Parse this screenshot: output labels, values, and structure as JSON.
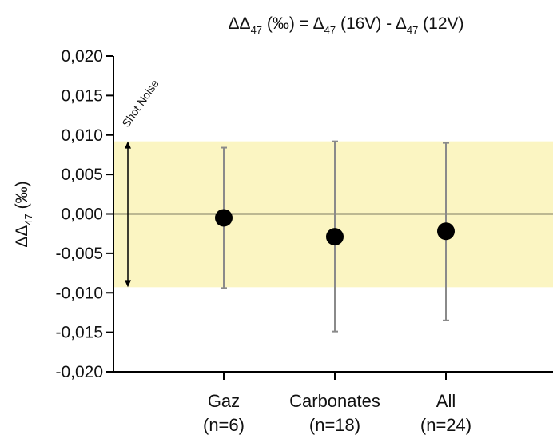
{
  "chart_data": {
    "type": "scatter",
    "title": {
      "main": "ΔΔ",
      "sub1": "47",
      "mid": " (‰) = Δ",
      "sub2": "47",
      "mid2": " (16V) - Δ",
      "sub3": "47",
      "end": " (12V)"
    },
    "ylabel": {
      "main": "ΔΔ",
      "sub": "47",
      "end": " (‰)"
    },
    "ylim": [
      -0.02,
      0.02
    ],
    "yticks": [
      "0,020",
      "0,015",
      "0,010",
      "0,005",
      "0,000",
      "-0,005",
      "-0,010",
      "-0,015",
      "-0,020"
    ],
    "ytick_values": [
      0.02,
      0.015,
      0.01,
      0.005,
      0,
      -0.005,
      -0.01,
      -0.015,
      -0.02
    ],
    "categories": [
      {
        "name": "Gaz",
        "count": "(n=6)"
      },
      {
        "name": "Carbonates",
        "count": "(n=18)"
      },
      {
        "name": "All",
        "count": "(n=24)"
      }
    ],
    "points": [
      {
        "category": "Gaz",
        "value": -0.0005,
        "err_low": -0.0094,
        "err_high": 0.0084
      },
      {
        "category": "Carbonates",
        "value": -0.0029,
        "err_low": -0.0149,
        "err_high": 0.0092
      },
      {
        "category": "All",
        "value": -0.0022,
        "err_low": -0.0135,
        "err_high": 0.009
      }
    ],
    "band": {
      "label": "Shot Noise",
      "low": -0.0093,
      "high": 0.0092,
      "color": "#fbf5c2"
    },
    "reference_line": 0,
    "colors": {
      "point": "#000000",
      "errorbar": "#8a8a8a",
      "axis": "#000000"
    }
  }
}
